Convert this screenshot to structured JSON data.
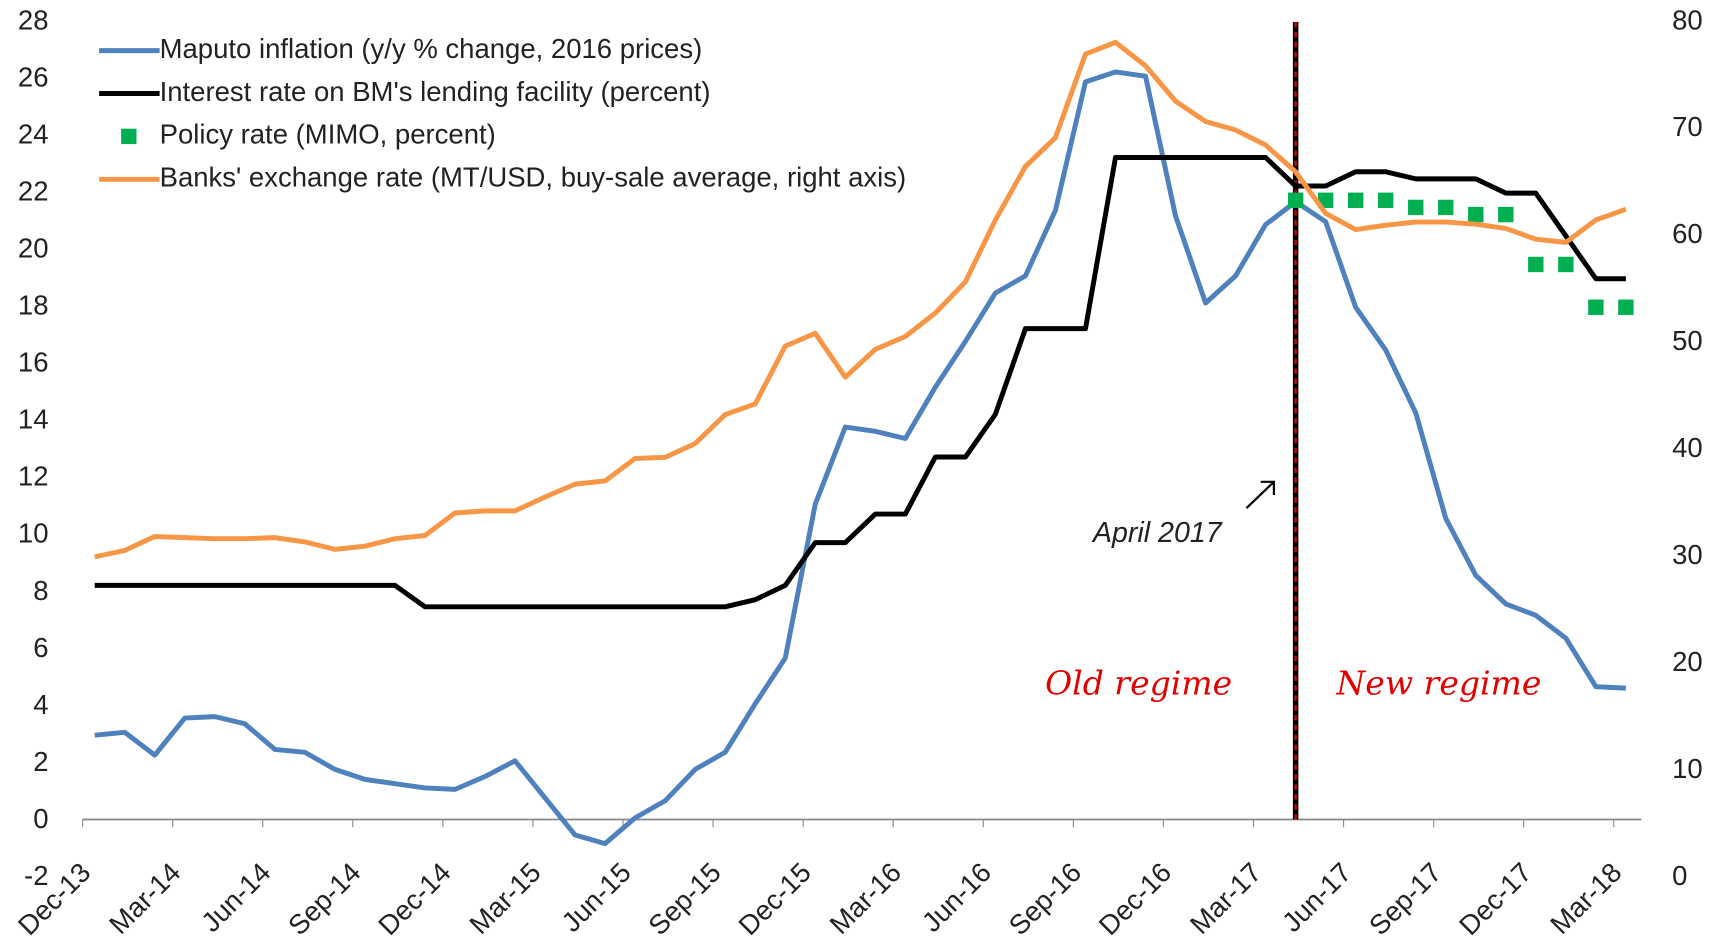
{
  "chart_data": {
    "type": "line",
    "x": [
      "Dec-13",
      null,
      null,
      "Mar-14",
      null,
      null,
      "Jun-14",
      null,
      null,
      "Sep-14",
      null,
      null,
      "Dec-14",
      null,
      null,
      "Mar-15",
      null,
      null,
      "Jun-15",
      null,
      null,
      "Sep-15",
      null,
      null,
      "Dec-15",
      null,
      null,
      "Mar-16",
      null,
      null,
      "Jun-16",
      null,
      null,
      "Sep-16",
      null,
      null,
      "Dec-16",
      null,
      null,
      "Mar-17",
      null,
      null,
      "Jun-17",
      null,
      null,
      "Sep-17",
      null,
      null,
      "Dec-17",
      null,
      null,
      "Mar-18"
    ],
    "series": [
      {
        "name": "Maputo inflation (y/y % change, 2016 prices)",
        "color": "#4f81bd",
        "style": "line",
        "values": [
          3.0,
          3.1,
          2.3,
          3.6,
          3.65,
          3.4,
          2.5,
          2.4,
          1.8,
          1.45,
          1.3,
          1.15,
          1.1,
          1.55,
          2.1,
          0.8,
          -0.5,
          -0.8,
          0.1,
          0.7,
          1.8,
          2.4,
          4.1,
          5.7,
          11.1,
          13.8,
          13.65,
          13.4,
          15.2,
          16.8,
          18.5,
          19.1,
          21.4,
          25.9,
          26.25,
          26.1,
          21.2,
          18.15,
          19.1,
          20.9,
          21.7,
          21.0,
          18.0,
          16.5,
          14.3,
          10.6,
          8.6,
          7.6,
          7.2,
          6.4,
          4.7,
          4.65
        ]
      },
      {
        "name": "Interest rate on BM's lending facility (percent)",
        "color": "#000000",
        "style": "line",
        "values": [
          8.25,
          8.25,
          8.25,
          8.25,
          8.25,
          8.25,
          8.25,
          8.25,
          8.25,
          8.25,
          8.25,
          7.5,
          7.5,
          7.5,
          7.5,
          7.5,
          7.5,
          7.5,
          7.5,
          7.5,
          7.5,
          7.5,
          7.75,
          8.25,
          9.75,
          9.75,
          10.75,
          10.75,
          12.75,
          12.75,
          14.25,
          17.25,
          17.25,
          17.25,
          23.25,
          23.25,
          23.25,
          23.25,
          23.25,
          23.25,
          22.25,
          22.25,
          22.75,
          22.75,
          22.5,
          22.5,
          22.5,
          22.0,
          22.0,
          20.5,
          19.0,
          19.0
        ]
      },
      {
        "name": "Policy rate (MIMO, percent)",
        "color": "#00b050",
        "style": "markers",
        "values": [
          null,
          null,
          null,
          null,
          null,
          null,
          null,
          null,
          null,
          null,
          null,
          null,
          null,
          null,
          null,
          null,
          null,
          null,
          null,
          null,
          null,
          null,
          null,
          null,
          null,
          null,
          null,
          null,
          null,
          null,
          null,
          null,
          null,
          null,
          null,
          null,
          null,
          null,
          null,
          null,
          21.75,
          21.75,
          21.75,
          21.75,
          21.5,
          21.5,
          21.25,
          21.25,
          19.5,
          19.5,
          18.0,
          18.0
        ]
      },
      {
        "name": "Banks' exchange rate (MT/USD, buy-sale average, right axis)",
        "color": "#f79646",
        "style": "line",
        "axis": "y2",
        "values": [
          30.0,
          30.6,
          31.9,
          31.8,
          31.7,
          31.7,
          31.8,
          31.4,
          30.7,
          31.0,
          31.7,
          32.0,
          34.1,
          34.3,
          34.3,
          35.6,
          36.8,
          37.1,
          39.2,
          39.3,
          40.6,
          43.3,
          44.3,
          49.7,
          50.9,
          46.8,
          49.4,
          50.6,
          52.8,
          55.7,
          61.5,
          66.5,
          69.2,
          77.0,
          78.1,
          75.9,
          72.6,
          70.7,
          69.9,
          68.5,
          66.0,
          62.1,
          60.6,
          61.0,
          61.3,
          61.3,
          61.1,
          60.7,
          59.7,
          59.4,
          61.5,
          62.5
        ]
      }
    ],
    "ylim": [
      -2,
      28
    ],
    "yticks": [
      -2,
      0,
      2,
      4,
      6,
      8,
      10,
      12,
      14,
      16,
      18,
      20,
      22,
      24,
      26,
      28
    ],
    "y2lim": [
      0,
      80
    ],
    "y2ticks": [
      0,
      10,
      20,
      30,
      40,
      50,
      60,
      70,
      80
    ],
    "annotations": [
      "April 2017",
      "Old regime",
      "New regime"
    ],
    "legend": "upper left",
    "grid": false
  }
}
